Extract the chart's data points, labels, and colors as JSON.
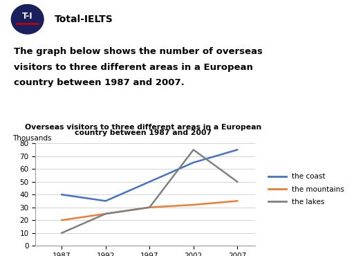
{
  "years": [
    1987,
    1992,
    1997,
    2002,
    2007
  ],
  "coast": [
    40,
    35,
    50,
    65,
    75
  ],
  "mountains": [
    20,
    25,
    30,
    32,
    35
  ],
  "lakes": [
    10,
    25,
    30,
    75,
    50
  ],
  "coast_color": "#4472c4",
  "mountains_color": "#ed7d31",
  "lakes_color": "#808080",
  "chart_title_line1": "Overseas visitors to three different areas in a European",
  "chart_title_line2": "country between 1987 and 2007",
  "ylabel": "Thousands",
  "ylim": [
    0,
    80
  ],
  "yticks": [
    0,
    10,
    20,
    30,
    40,
    50,
    60,
    70,
    80
  ],
  "xticks": [
    1987,
    1992,
    1997,
    2002,
    2007
  ],
  "legend_labels": [
    "the coast",
    "the mountains",
    "the lakes"
  ],
  "logo_text": "T-I",
  "logo_subtext": "Total-IELTS",
  "question_line1": "The graph below shows the number of overseas",
  "question_line2": "visitors to three different areas in a European",
  "question_line3": "country between 1987 and 2007.",
  "logo_color": "#1a1f5e",
  "bg_color": "#ffffff"
}
